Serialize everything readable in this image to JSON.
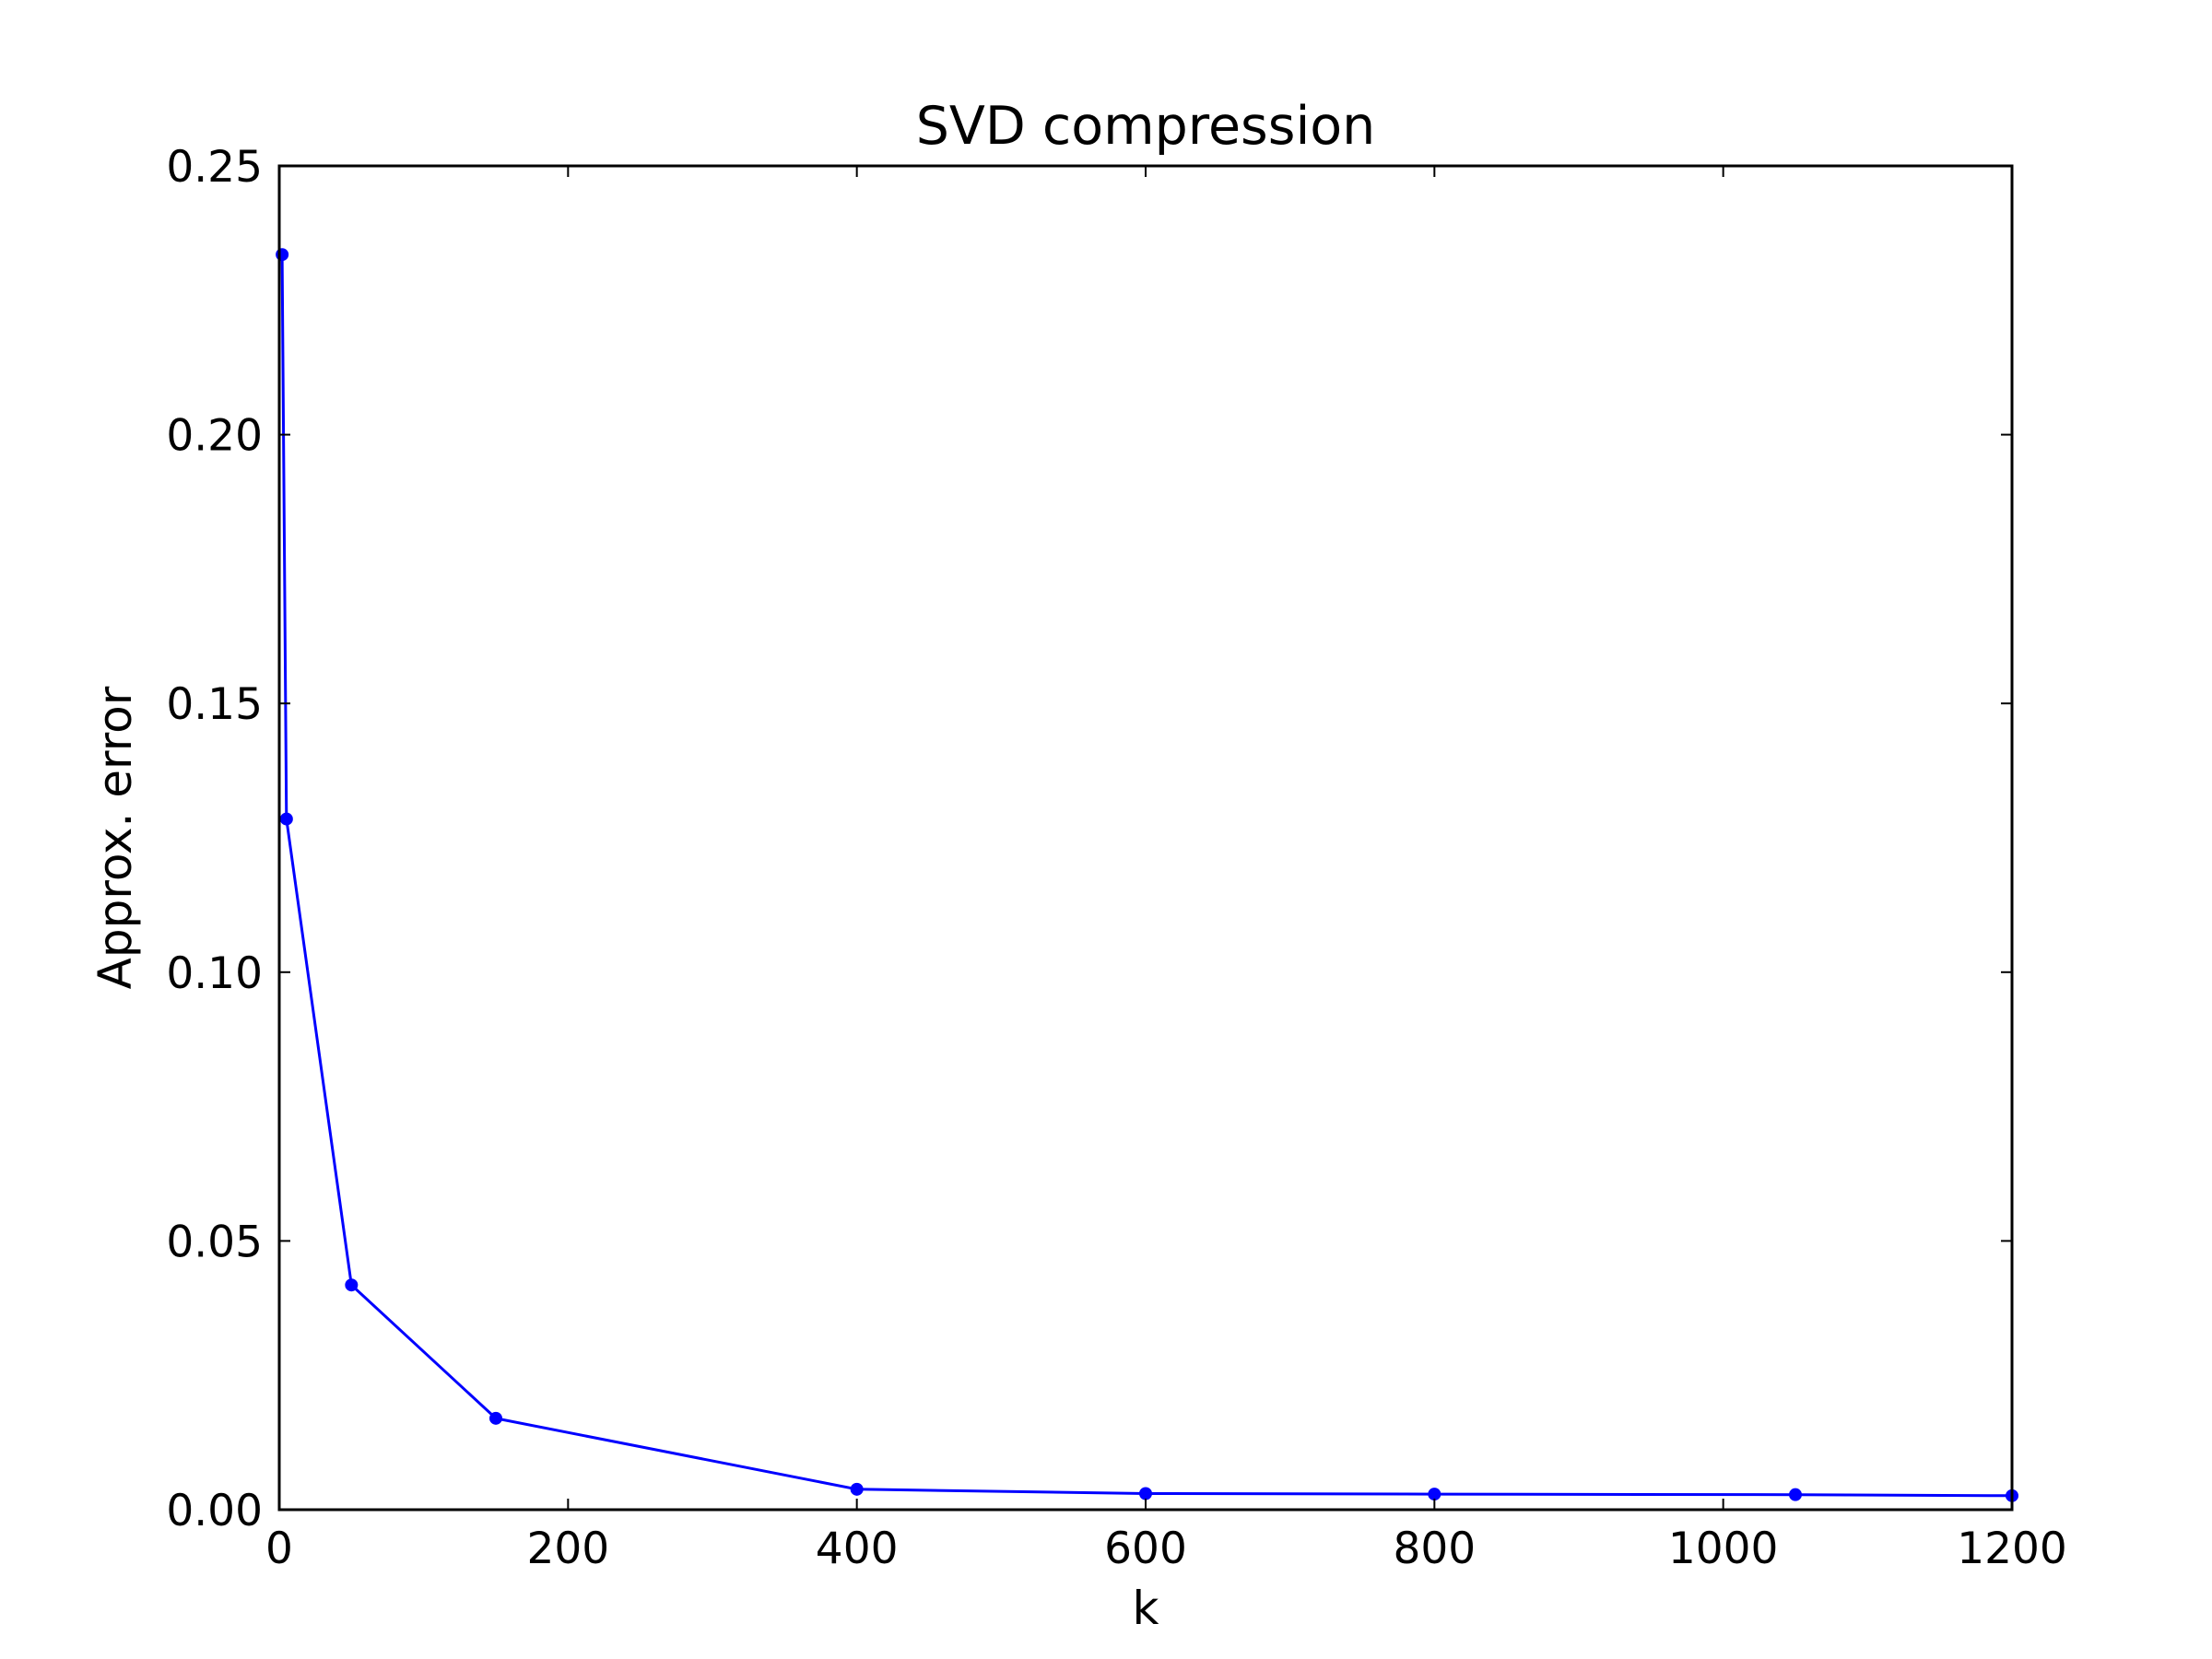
{
  "chart_data": {
    "type": "line",
    "title": "SVD compression",
    "xlabel": "k",
    "ylabel": "Approx. error",
    "xlim": [
      0,
      1200
    ],
    "ylim": [
      0,
      0.25
    ],
    "xticks": [
      0,
      200,
      400,
      600,
      800,
      1000,
      1200
    ],
    "xtick_labels": [
      "0",
      "200",
      "400",
      "600",
      "800",
      "1000",
      "1200"
    ],
    "yticks": [
      0,
      0.05,
      0.1,
      0.15,
      0.2,
      0.25
    ],
    "ytick_labels": [
      "0.00",
      "0.05",
      "0.10",
      "0.15",
      "0.20",
      "0.25"
    ],
    "grid": false,
    "legend": "none",
    "series": [
      {
        "color": "#0000ff",
        "marker": "circle",
        "x": [
          2,
          5,
          50,
          150,
          400,
          600,
          800,
          1050,
          1200
        ],
        "y": [
          0.2335,
          0.1285,
          0.0418,
          0.017,
          0.0038,
          0.003,
          0.0029,
          0.0028,
          0.0026
        ]
      }
    ]
  }
}
